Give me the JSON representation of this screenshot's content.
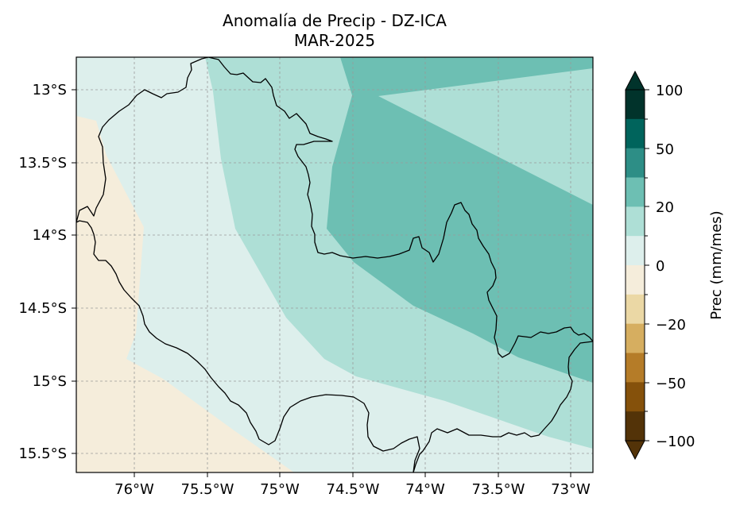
{
  "map": {
    "title": "Anomalía de Precip - DZ-ICA",
    "subtitle": "MAR-2025",
    "x_ticks": [
      "76°W",
      "75.5°W",
      "75°W",
      "74.5°W",
      "74°W",
      "73.5°W",
      "73°W"
    ],
    "y_ticks": [
      "13°S",
      "13.5°S",
      "14°S",
      "14.5°S",
      "15°S",
      "15.5°S"
    ],
    "colors": {
      "zero_to_ten": "#ddefec",
      "ten_to_twenty": "#aedfd6",
      "twenty_to_thirty": "#6dbfb3",
      "below_zero": "#f5eddb",
      "border": "#000000",
      "grid": "#9a9a9a"
    }
  },
  "colorbar": {
    "label": "Prec (mm/mes)",
    "tick_labels": [
      "100",
      "50",
      "20",
      "0",
      "−20",
      "−50",
      "−100"
    ],
    "bands": [
      "#01332b",
      "#00645c",
      "#2d8e86",
      "#6dbfb3",
      "#aedfd6",
      "#ddefec",
      "#f5eddb",
      "#ebd8a5",
      "#d6ae60",
      "#b57c28",
      "#85510b",
      "#533308"
    ]
  }
}
